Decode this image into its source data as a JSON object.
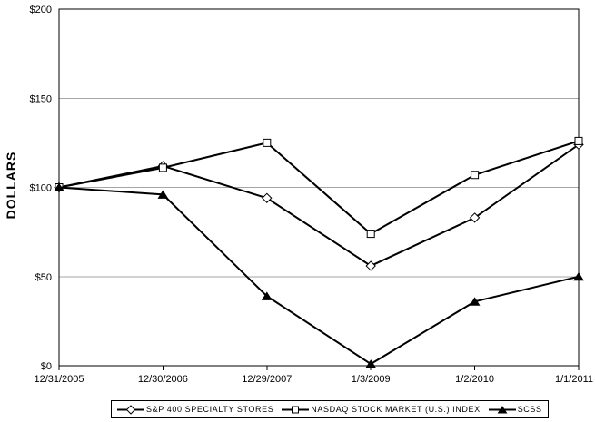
{
  "chart_data": {
    "type": "line",
    "title": "",
    "xlabel": "",
    "ylabel": "DOLLARS",
    "ylim": [
      0,
      200
    ],
    "grid": true,
    "legend_position": "bottom",
    "x_labels": [
      "12/31/2005",
      "12/30/2006",
      "12/29/2007",
      "1/3/2009",
      "1/2/2010",
      "1/1/2011"
    ],
    "y_ticks": [
      "$0",
      "$50",
      "$100",
      "$150",
      "$200"
    ],
    "y_tick_values": [
      0,
      50,
      100,
      150,
      200
    ],
    "series": [
      {
        "name": "S&P 400 SPECIALTY STORES",
        "marker": "diamond",
        "marker_fill": "#ffffff",
        "line_color": "#000000",
        "values": [
          100,
          112,
          94,
          56,
          83,
          124
        ]
      },
      {
        "name": "NASDAQ STOCK MARKET (U.S.) INDEX",
        "marker": "square",
        "marker_fill": "#ffffff",
        "line_color": "#000000",
        "values": [
          100,
          111,
          125,
          74,
          107,
          126
        ]
      },
      {
        "name": "SCSS",
        "marker": "triangle",
        "marker_fill": "#000000",
        "line_color": "#000000",
        "values": [
          100,
          96,
          39,
          1,
          36,
          50
        ]
      }
    ],
    "colors": {
      "axis": "#000000",
      "grid": "#a6a6a6",
      "background": "#ffffff",
      "text": "#000000"
    }
  }
}
